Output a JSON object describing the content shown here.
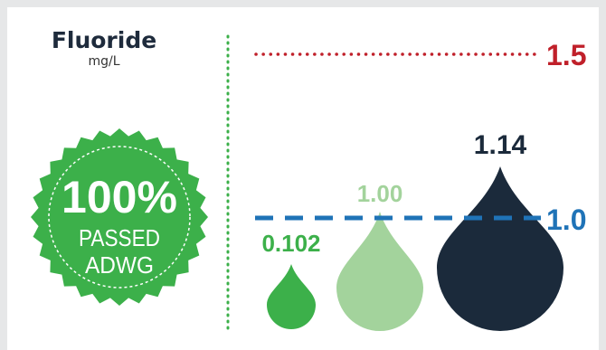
{
  "title": "Fluoride",
  "unit": "mg/L",
  "badge": {
    "percent": "100%",
    "line1": "PASSED",
    "line2": "ADWG"
  },
  "thresholds": [
    {
      "label": "1.5",
      "value": 1.5,
      "color": "#c0202a",
      "style": "dotted"
    },
    {
      "label": "1.0",
      "value": 1.0,
      "color": "#1f73b7",
      "style": "dashed"
    }
  ],
  "drops": [
    {
      "label": "0.102",
      "value": 0.102,
      "color": "#3cb04a",
      "label_color": "#3cb04a"
    },
    {
      "label": "1.00",
      "value": 1.0,
      "color": "#a3d39c",
      "label_color": "#a3d39c"
    },
    {
      "label": "1.14",
      "value": 1.14,
      "color": "#1b2a3b",
      "label_color": "#1b2a3b"
    }
  ],
  "colors": {
    "background": "#e6e7e8",
    "badge": "#3cb04a",
    "divider": "#3cb04a"
  }
}
